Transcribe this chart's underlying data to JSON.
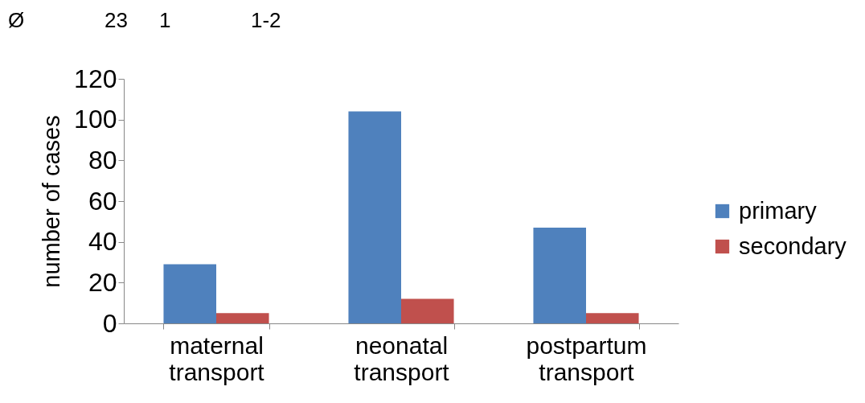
{
  "chart_data": {
    "type": "bar",
    "ylabel": "number of cases",
    "categories": [
      "maternal transport",
      "neonatal transport",
      "postpartum transport"
    ],
    "series": [
      {
        "name": "primary",
        "color": "#4f81bd",
        "values": [
          29,
          104,
          47
        ]
      },
      {
        "name": "secondary",
        "color": "#c0504d",
        "values": [
          5,
          12,
          5
        ]
      }
    ],
    "ylim": [
      0,
      120
    ],
    "yticks": [
      0,
      20,
      40,
      60,
      80,
      100,
      120
    ],
    "grid": false,
    "legend": "right",
    "annotations": [
      "Ø",
      "23",
      "1",
      "1-2"
    ]
  }
}
